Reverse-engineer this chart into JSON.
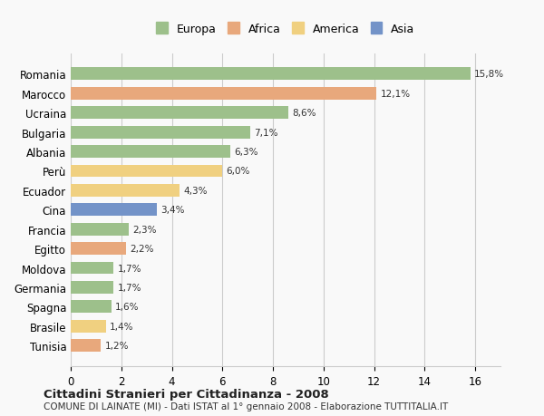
{
  "categories": [
    "Romania",
    "Marocco",
    "Ucraina",
    "Bulgaria",
    "Albania",
    "Perù",
    "Ecuador",
    "Cina",
    "Francia",
    "Egitto",
    "Moldova",
    "Germania",
    "Spagna",
    "Brasile",
    "Tunisia"
  ],
  "values": [
    15.8,
    12.1,
    8.6,
    7.1,
    6.3,
    6.0,
    4.3,
    3.4,
    2.3,
    2.2,
    1.7,
    1.7,
    1.6,
    1.4,
    1.2
  ],
  "colors": [
    "#9dc08b",
    "#e8a87c",
    "#9dc08b",
    "#9dc08b",
    "#9dc08b",
    "#f0d080",
    "#f0d080",
    "#7393c8",
    "#9dc08b",
    "#e8a87c",
    "#9dc08b",
    "#9dc08b",
    "#9dc08b",
    "#f0d080",
    "#e8a87c"
  ],
  "labels": [
    "15,8%",
    "12,1%",
    "8,6%",
    "7,1%",
    "6,3%",
    "6,0%",
    "4,3%",
    "3,4%",
    "2,3%",
    "2,2%",
    "1,7%",
    "1,7%",
    "1,6%",
    "1,4%",
    "1,2%"
  ],
  "legend": [
    {
      "label": "Europa",
      "color": "#9dc08b"
    },
    {
      "label": "Africa",
      "color": "#e8a87c"
    },
    {
      "label": "America",
      "color": "#f0d080"
    },
    {
      "label": "Asia",
      "color": "#7393c8"
    }
  ],
  "xlim": [
    0,
    17
  ],
  "xticks": [
    0,
    2,
    4,
    6,
    8,
    10,
    12,
    14,
    16
  ],
  "title": "Cittadini Stranieri per Cittadinanza - 2008",
  "subtitle": "COMUNE DI LAINATE (MI) - Dati ISTAT al 1° gennaio 2008 - Elaborazione TUTTITALIA.IT",
  "background_color": "#f9f9f9",
  "grid_color": "#cccccc",
  "bar_height": 0.65
}
